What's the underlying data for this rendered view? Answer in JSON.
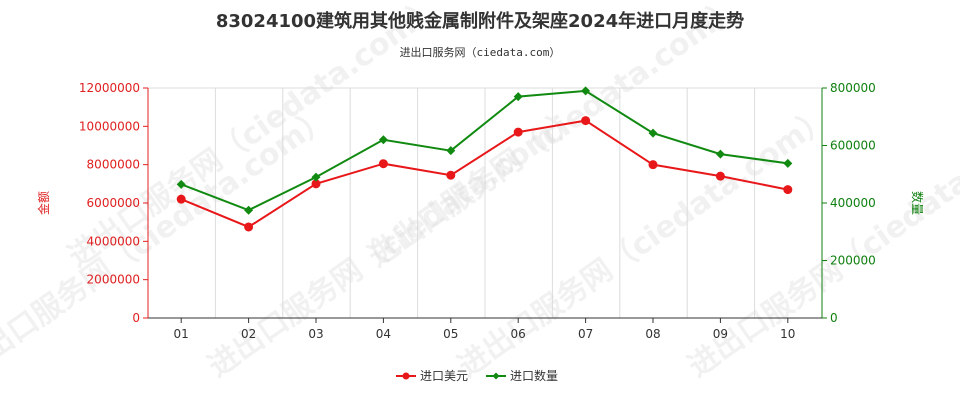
{
  "chart_data": {
    "type": "line",
    "title": "83024100建筑用其他贱金属制附件及架座2024年进口月度走势",
    "subtitle": "进出口服务网（ciedata.com）",
    "categories": [
      "01",
      "02",
      "03",
      "04",
      "05",
      "06",
      "07",
      "08",
      "09",
      "10"
    ],
    "y_left": {
      "label": "金额",
      "ylim": [
        0,
        12000000
      ],
      "ticks": [
        0,
        2000000,
        4000000,
        6000000,
        8000000,
        10000000,
        12000000
      ],
      "tick_labels": [
        "0",
        "2000000",
        "4000000",
        "6000000",
        "8000000",
        "10000000",
        "12000000"
      ]
    },
    "y_right": {
      "label": "数量",
      "ylim": [
        0,
        800000
      ],
      "ticks": [
        0,
        200000,
        400000,
        600000,
        800000
      ],
      "tick_labels": [
        "0",
        "200000",
        "400000",
        "600000",
        "800000"
      ]
    },
    "series": [
      {
        "name": "进口美元",
        "axis": "left",
        "color": "#e8181a",
        "values": [
          6200000,
          4750000,
          7000000,
          8050000,
          7450000,
          9700000,
          10300000,
          8000000,
          7400000,
          6700000
        ]
      },
      {
        "name": "进口数量",
        "axis": "right",
        "color": "#118a11",
        "values": [
          465000,
          375000,
          490000,
          620000,
          582000,
          770000,
          790000,
          643000,
          570000,
          538000
        ]
      }
    ],
    "grid": "vertical",
    "legend_position": "bottom-center"
  }
}
